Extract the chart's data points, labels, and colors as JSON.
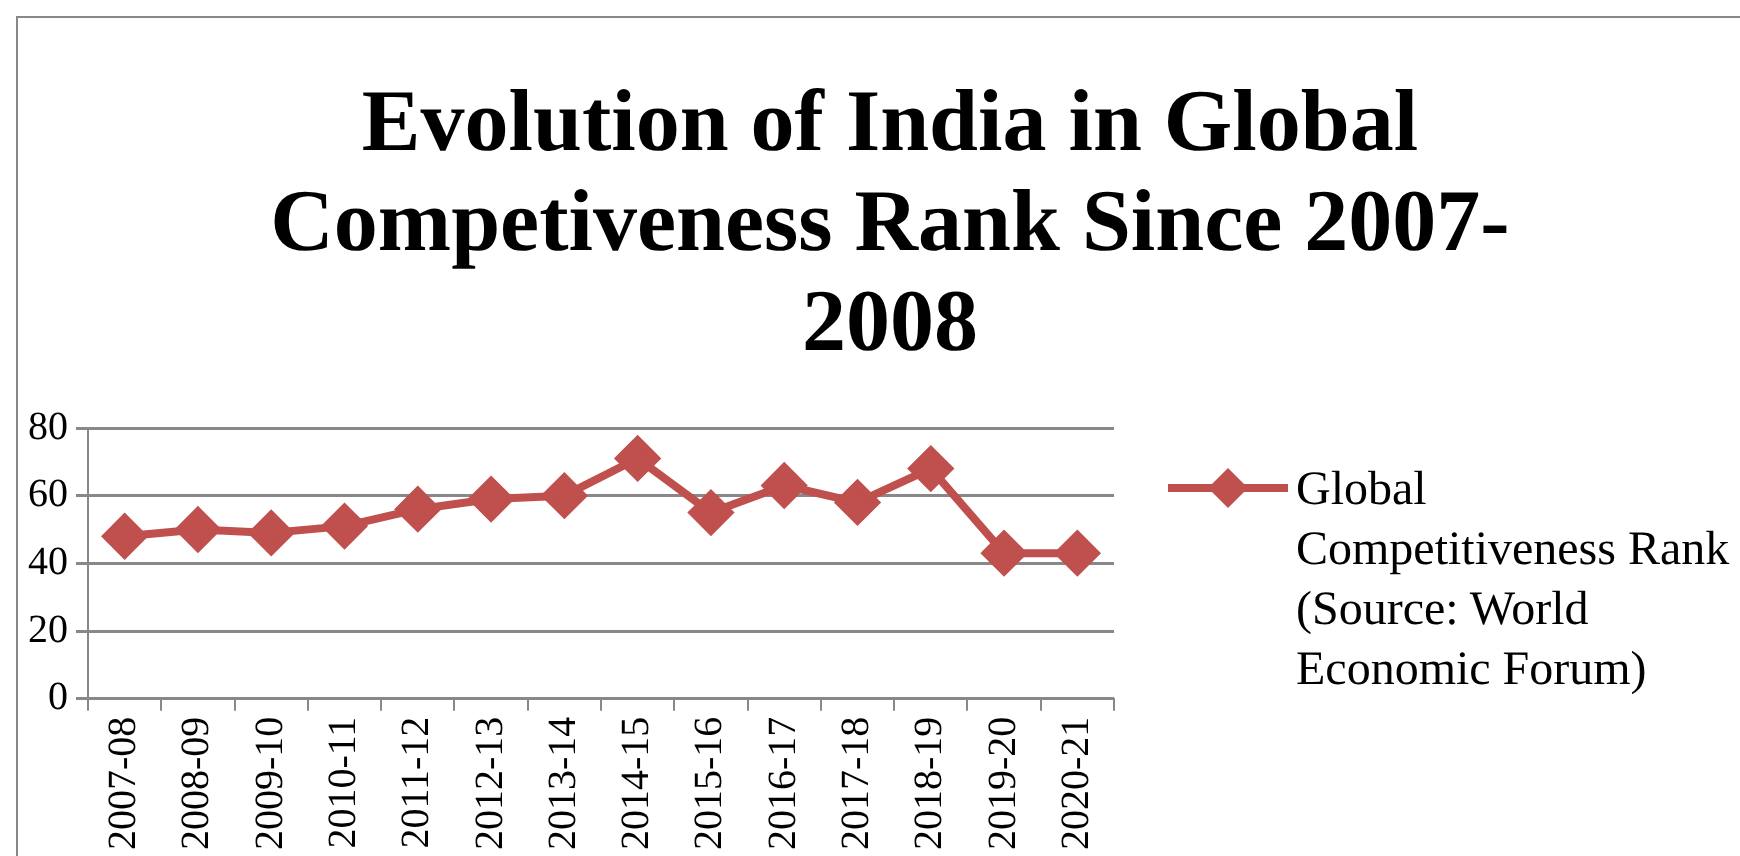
{
  "chart_data": {
    "type": "line",
    "title": "Evolution of India in Global Competiveness Rank Since 2007-2008",
    "categories": [
      "2007-08",
      "2008-09",
      "2009-10",
      "2010-11",
      "2011-12",
      "2012-13",
      "2013-14",
      "2014-15",
      "2015-16",
      "2016-17",
      "2017-18",
      "2018-19",
      "2019-20",
      "2020-21"
    ],
    "series": [
      {
        "name": "Global Competitiveness Rank (Source: World Economic Forum)",
        "color": "#c0504d",
        "values": [
          48,
          50,
          49,
          51,
          56,
          59,
          60,
          71,
          55,
          63,
          58,
          68,
          43,
          43
        ]
      }
    ],
    "ylim": [
      0,
      80
    ],
    "yticks": [
      0,
      20,
      40,
      60,
      80
    ],
    "grid": "y",
    "legend": "right",
    "marker": "diamond",
    "line_style": "solid"
  }
}
